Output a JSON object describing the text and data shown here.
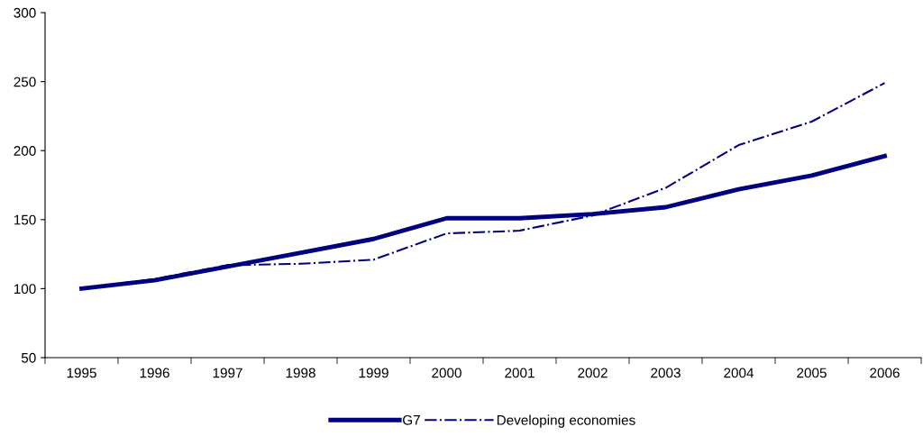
{
  "chart_data": {
    "type": "line",
    "categories": [
      "1995",
      "1996",
      "1997",
      "1998",
      "1999",
      "2000",
      "2001",
      "2002",
      "2003",
      "2004",
      "2005",
      "2006"
    ],
    "series": [
      {
        "name": "G7",
        "color": "#000080",
        "line_style": "solid",
        "values": [
          100,
          106,
          116,
          126,
          136,
          151,
          151,
          154,
          159,
          172,
          182,
          196
        ]
      },
      {
        "name": "Developing economies",
        "color": "#000080",
        "line_style": "dashdot",
        "values": [
          100,
          107,
          117,
          118,
          121,
          140,
          142,
          153,
          173,
          204,
          221,
          249
        ]
      }
    ],
    "ylim": [
      50,
      300
    ],
    "yticks": [
      50,
      100,
      150,
      200,
      250,
      300
    ],
    "grid": false,
    "legend": "bottom",
    "marker": "none"
  }
}
